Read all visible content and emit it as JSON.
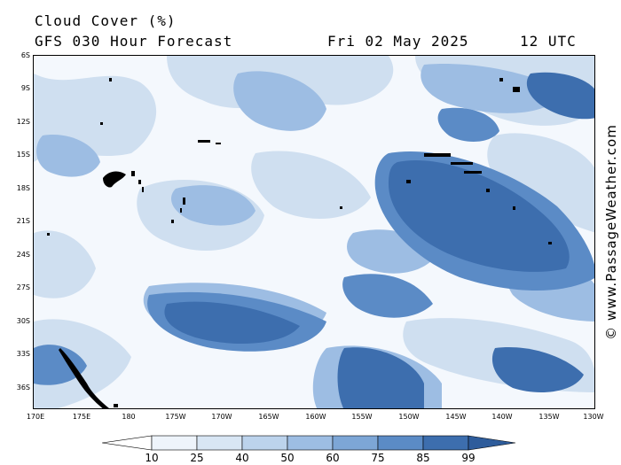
{
  "header": {
    "title": "Cloud Cover (%)",
    "subtitle": "GFS 030 Hour Forecast",
    "date": "Fri 02 May 2025",
    "time": "12 UTC"
  },
  "credit": "© www.PassageWeather.com",
  "map": {
    "lat_labels": [
      "6S",
      "9S",
      "12S",
      "15S",
      "18S",
      "21S",
      "24S",
      "27S",
      "30S",
      "33S",
      "36S"
    ],
    "lon_labels": [
      "170E",
      "175E",
      "180",
      "175W",
      "170W",
      "165W",
      "160W",
      "155W",
      "150W",
      "145W",
      "140W",
      "135W",
      "130W"
    ],
    "colors": {
      "ocean_base": "#f4f8fd",
      "light": "#cfdff0",
      "medium": "#9dbde3",
      "dark": "#5b8bc6",
      "darkest": "#3d6eae",
      "land": "#000000"
    }
  },
  "legend": {
    "labels": [
      "10",
      "25",
      "40",
      "50",
      "60",
      "75",
      "85",
      "99"
    ],
    "colors": [
      "#ffffff",
      "#eef4fb",
      "#d8e6f4",
      "#bcd3ec",
      "#9dbde3",
      "#7da6d6",
      "#5b8bc6",
      "#3d6eae",
      "#2e5c9b"
    ]
  }
}
